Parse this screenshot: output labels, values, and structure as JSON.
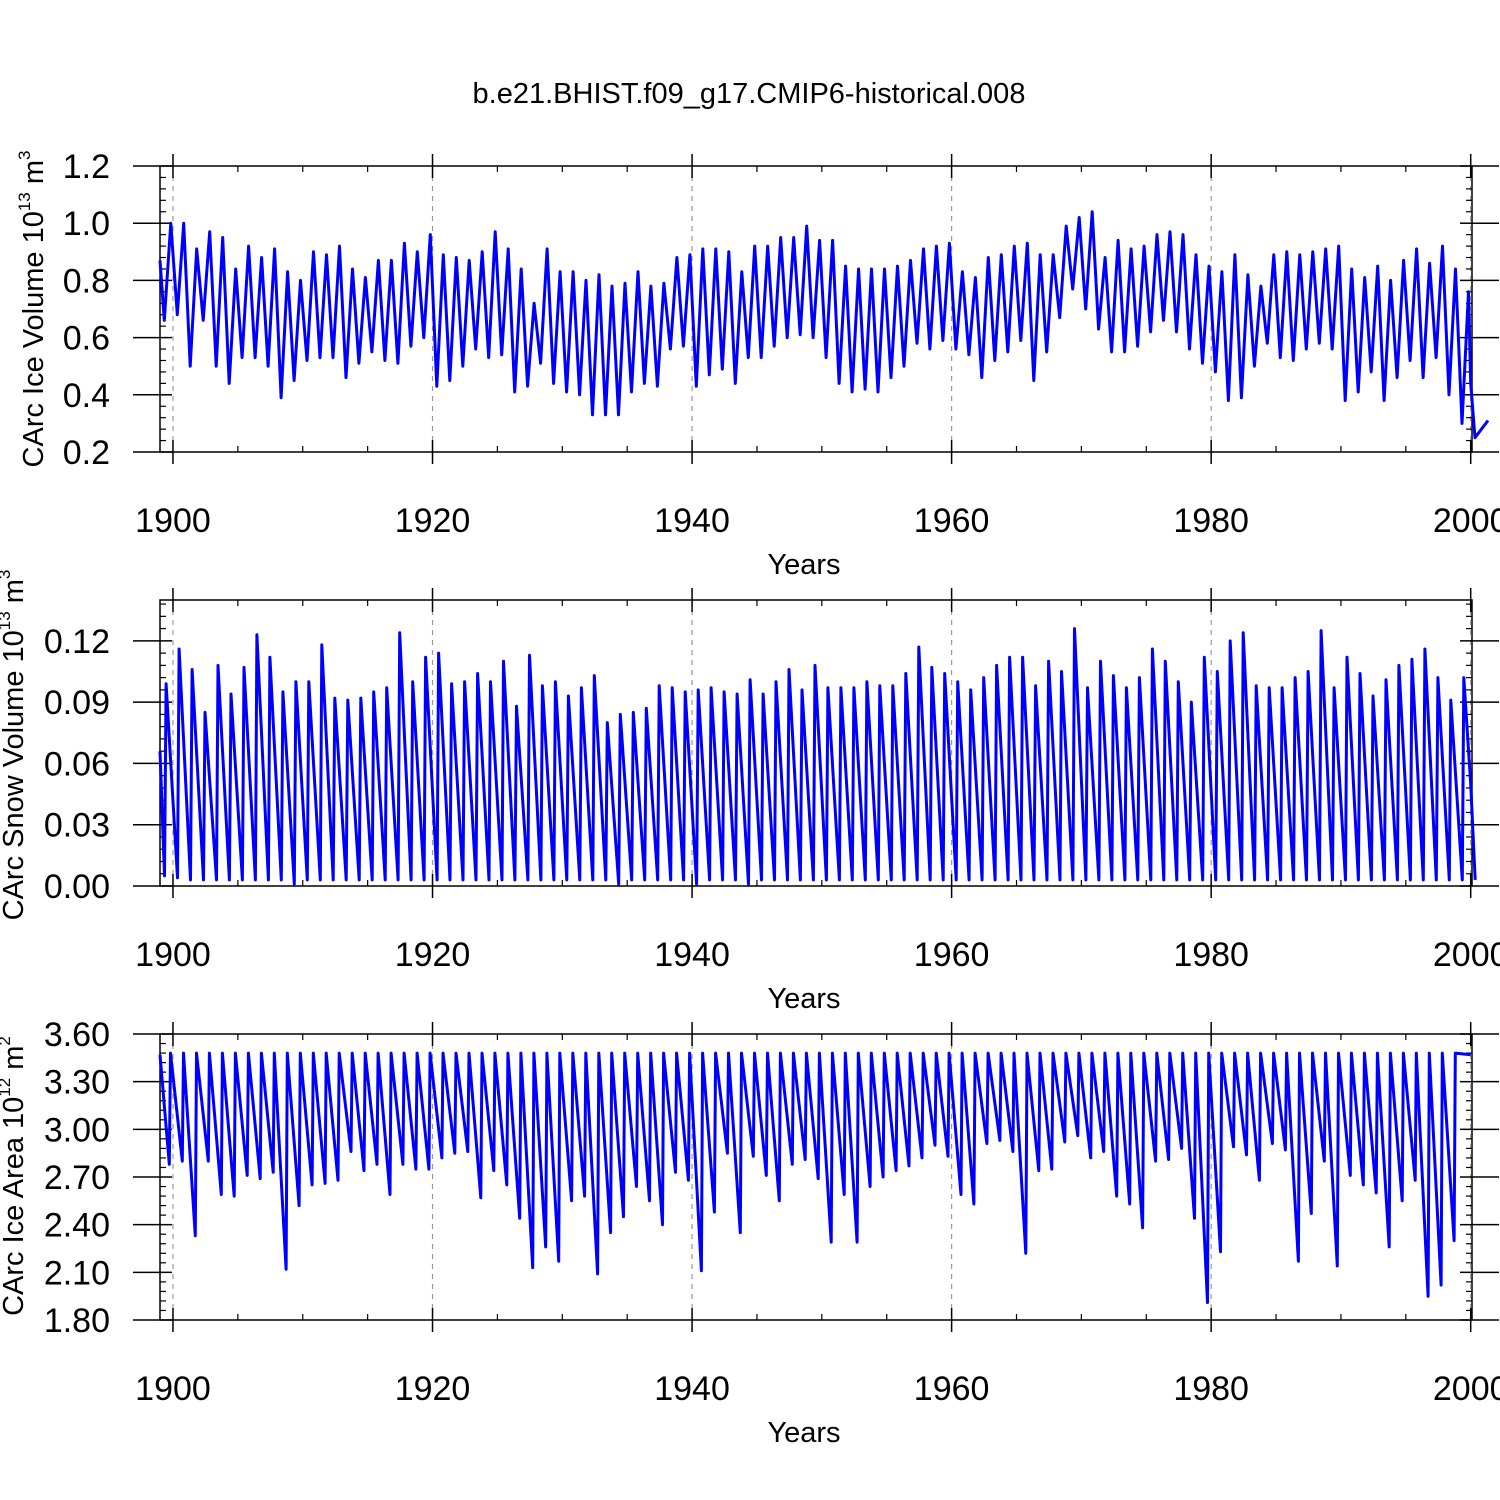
{
  "figure_title": "b.e21.BHIST.f09_g17.CMIP6-historical.008",
  "colors": {
    "series": "#0000ff",
    "frame": "#000000",
    "grid": "#999999"
  },
  "chart_data": [
    {
      "type": "line",
      "id": "ice-volume",
      "title": "b.e21.BHIST.f09_g17.CMIP6-historical.008",
      "xlabel": "Years",
      "ylabel": {
        "prefix": "CArc Ice Volume 10",
        "exp": "13",
        "unit": " m",
        "unit_exp": "3"
      },
      "xlim": [
        1899,
        2000.1
      ],
      "ylim": [
        0.2,
        1.2
      ],
      "xticks": [
        1900,
        1920,
        1940,
        1960,
        1980,
        2000
      ],
      "xtick_labels": [
        "1900",
        "1920",
        "1940",
        "1960",
        "1980",
        "2000"
      ],
      "yticks": [
        0.2,
        0.4,
        0.6,
        0.8,
        1.0,
        1.2
      ],
      "ytick_labels": [
        "0.2",
        "0.4",
        "0.6",
        "0.8",
        "1.0",
        "1.2"
      ],
      "grid_x": "dashed at 20-year marks",
      "seasonal_phase": 0.33,
      "seasonal_width": 0.5,
      "series": [
        {
          "name": "CArc Ice Volume",
          "start_year": 1899,
          "start_value": 0.87,
          "end_year": 2000,
          "end_value": 0.44,
          "annual_max": [
            1.0,
            1.0,
            0.91,
            0.97,
            0.95,
            0.84,
            0.92,
            0.88,
            0.91,
            0.83,
            0.8,
            0.9,
            0.89,
            0.92,
            0.84,
            0.81,
            0.87,
            0.87,
            0.93,
            0.9,
            0.96,
            0.89,
            0.88,
            0.87,
            0.9,
            0.97,
            0.91,
            0.84,
            0.72,
            0.91,
            0.83,
            0.83,
            0.8,
            0.82,
            0.78,
            0.79,
            0.83,
            0.78,
            0.79,
            0.88,
            0.89,
            0.91,
            0.91,
            0.9,
            0.83,
            0.92,
            0.92,
            0.95,
            0.95,
            0.99,
            0.94,
            0.94,
            0.85,
            0.84,
            0.84,
            0.84,
            0.85,
            0.87,
            0.91,
            0.92,
            0.93,
            0.83,
            0.81,
            0.88,
            0.89,
            0.92,
            0.93,
            0.89,
            0.89,
            0.99,
            1.02,
            1.04,
            0.88,
            0.94,
            0.91,
            0.92,
            0.96,
            0.97,
            0.96,
            0.89,
            0.85,
            0.83,
            0.89,
            0.82,
            0.78,
            0.89,
            0.9,
            0.89,
            0.9,
            0.91,
            0.92,
            0.84,
            0.81,
            0.85,
            0.8,
            0.87,
            0.91,
            0.86,
            0.92,
            0.84,
            0.76,
            0.7,
            0.71
          ],
          "annual_min": [
            0.66,
            0.68,
            0.5,
            0.66,
            0.5,
            0.44,
            0.53,
            0.53,
            0.5,
            0.39,
            0.45,
            0.52,
            0.53,
            0.53,
            0.46,
            0.51,
            0.55,
            0.52,
            0.51,
            0.57,
            0.6,
            0.43,
            0.45,
            0.5,
            0.56,
            0.53,
            0.54,
            0.41,
            0.43,
            0.51,
            0.44,
            0.41,
            0.4,
            0.33,
            0.33,
            0.33,
            0.41,
            0.44,
            0.43,
            0.56,
            0.57,
            0.43,
            0.47,
            0.49,
            0.44,
            0.53,
            0.53,
            0.57,
            0.6,
            0.61,
            0.6,
            0.53,
            0.44,
            0.41,
            0.42,
            0.41,
            0.46,
            0.5,
            0.58,
            0.56,
            0.59,
            0.56,
            0.54,
            0.46,
            0.52,
            0.55,
            0.59,
            0.45,
            0.55,
            0.67,
            0.77,
            0.7,
            0.63,
            0.55,
            0.55,
            0.57,
            0.62,
            0.66,
            0.62,
            0.56,
            0.51,
            0.48,
            0.38,
            0.39,
            0.5,
            0.58,
            0.53,
            0.52,
            0.56,
            0.58,
            0.56,
            0.38,
            0.41,
            0.48,
            0.38,
            0.46,
            0.52,
            0.46,
            0.53,
            0.4,
            0.3,
            0.25,
            0.31
          ]
        }
      ]
    },
    {
      "type": "line",
      "id": "snow-volume",
      "xlabel": "Years",
      "ylabel": {
        "prefix": "CArc Snow Volume 10",
        "exp": "13",
        "unit": " m",
        "unit_exp": "3"
      },
      "xlim": [
        1899,
        2000.1
      ],
      "ylim": [
        0.0,
        0.14
      ],
      "xticks": [
        1900,
        1920,
        1940,
        1960,
        1980,
        2000
      ],
      "xtick_labels": [
        "1900",
        "1920",
        "1940",
        "1960",
        "1980",
        "2000"
      ],
      "yticks": [
        0.0,
        0.03,
        0.06,
        0.09,
        0.12
      ],
      "ytick_labels": [
        "0.00",
        "0.03",
        "0.06",
        "0.09",
        "0.12"
      ],
      "grid_x": "dashed at 20-year marks",
      "seasonal_phase": 0.35,
      "seasonal_width": 0.12,
      "series": [
        {
          "name": "CArc Snow Volume",
          "start_year": 1899,
          "start_value": 0.066,
          "end_year": 2000,
          "end_value": 0.05,
          "annual_max": [
            0.099,
            0.116,
            0.106,
            0.085,
            0.108,
            0.094,
            0.107,
            0.123,
            0.112,
            0.095,
            0.1,
            0.1,
            0.118,
            0.092,
            0.091,
            0.092,
            0.095,
            0.097,
            0.124,
            0.1,
            0.112,
            0.114,
            0.099,
            0.1,
            0.104,
            0.1,
            0.11,
            0.088,
            0.113,
            0.098,
            0.1,
            0.093,
            0.097,
            0.103,
            0.08,
            0.084,
            0.085,
            0.087,
            0.098,
            0.097,
            0.095,
            0.096,
            0.097,
            0.095,
            0.094,
            0.101,
            0.094,
            0.1,
            0.106,
            0.096,
            0.108,
            0.097,
            0.097,
            0.097,
            0.1,
            0.098,
            0.098,
            0.104,
            0.117,
            0.107,
            0.104,
            0.1,
            0.096,
            0.102,
            0.108,
            0.112,
            0.112,
            0.098,
            0.11,
            0.105,
            0.126,
            0.097,
            0.11,
            0.103,
            0.097,
            0.102,
            0.116,
            0.11,
            0.1,
            0.09,
            0.112,
            0.105,
            0.12,
            0.124,
            0.098,
            0.097,
            0.097,
            0.102,
            0.105,
            0.125,
            0.097,
            0.112,
            0.104,
            0.093,
            0.101,
            0.108,
            0.111,
            0.116,
            0.102,
            0.091,
            0.102,
            0.099,
            0.105
          ],
          "annual_min": [
            0.005,
            0.004,
            0.003,
            0.003,
            0.003,
            0.003,
            0.003,
            0.003,
            0.003,
            0.003,
            0.001,
            0.003,
            0.003,
            0.003,
            0.003,
            0.003,
            0.003,
            0.003,
            0.003,
            0.003,
            0.003,
            0.003,
            0.003,
            0.003,
            0.003,
            0.003,
            0.003,
            0.003,
            0.003,
            0.003,
            0.003,
            0.003,
            0.003,
            0.003,
            0.003,
            0.001,
            0.003,
            0.003,
            0.003,
            0.003,
            0.003,
            0.001,
            0.003,
            0.003,
            0.003,
            0.001,
            0.003,
            0.003,
            0.003,
            0.003,
            0.003,
            0.003,
            0.003,
            0.003,
            0.003,
            0.003,
            0.003,
            0.003,
            0.003,
            0.003,
            0.003,
            0.003,
            0.003,
            0.003,
            0.003,
            0.003,
            0.003,
            0.003,
            0.003,
            0.003,
            0.003,
            0.003,
            0.003,
            0.003,
            0.003,
            0.003,
            0.003,
            0.003,
            0.003,
            0.003,
            0.003,
            0.003,
            0.003,
            0.003,
            0.003,
            0.003,
            0.003,
            0.003,
            0.003,
            0.003,
            0.003,
            0.003,
            0.003,
            0.003,
            0.003,
            0.003,
            0.003,
            0.003,
            0.003,
            0.003,
            0.003,
            0.003
          ]
        }
      ]
    },
    {
      "type": "line",
      "id": "ice-area",
      "xlabel": "Years",
      "ylabel": {
        "prefix": "CArc Ice Area 10",
        "exp": "12",
        "unit": " m",
        "unit_exp": "2"
      },
      "xlim": [
        1899,
        2000.1
      ],
      "ylim": [
        1.8,
        3.6
      ],
      "xticks": [
        1900,
        1920,
        1940,
        1960,
        1980,
        2000
      ],
      "xtick_labels": [
        "1900",
        "1920",
        "1940",
        "1960",
        "1980",
        "2000"
      ],
      "yticks": [
        1.8,
        2.1,
        2.4,
        2.7,
        3.0,
        3.3,
        3.6
      ],
      "ytick_labels": [
        "1.80",
        "2.10",
        "2.40",
        "2.70",
        "3.00",
        "3.30",
        "3.60"
      ],
      "grid_x": "dashed at 20-year marks",
      "seasonal_phase": 0.72,
      "seasonal_width": 0.09,
      "series": [
        {
          "name": "CArc Ice Area",
          "start_year": 1899,
          "start_value": 3.47,
          "end_year": 2000,
          "end_value": 3.47,
          "annual_max": [
            3.48,
            3.48,
            3.48,
            3.48,
            3.48,
            3.48,
            3.48,
            3.48,
            3.48,
            3.48,
            3.48,
            3.48,
            3.48,
            3.48,
            3.48,
            3.48,
            3.48,
            3.48,
            3.48,
            3.48,
            3.48,
            3.48,
            3.48,
            3.48,
            3.48,
            3.48,
            3.48,
            3.48,
            3.48,
            3.48,
            3.48,
            3.48,
            3.48,
            3.48,
            3.48,
            3.48,
            3.48,
            3.48,
            3.48,
            3.48,
            3.48,
            3.48,
            3.48,
            3.48,
            3.48,
            3.48,
            3.48,
            3.48,
            3.48,
            3.48,
            3.48,
            3.48,
            3.48,
            3.48,
            3.48,
            3.48,
            3.48,
            3.48,
            3.48,
            3.48,
            3.48,
            3.48,
            3.48,
            3.48,
            3.48,
            3.48,
            3.48,
            3.48,
            3.48,
            3.48,
            3.48,
            3.48,
            3.48,
            3.48,
            3.48,
            3.48,
            3.48,
            3.48,
            3.48,
            3.48,
            3.48,
            3.48,
            3.48,
            3.48,
            3.48,
            3.48,
            3.48,
            3.48,
            3.48,
            3.48,
            3.48,
            3.48,
            3.48,
            3.48,
            3.48,
            3.48,
            3.48,
            3.48,
            3.48,
            3.48,
            3.48
          ],
          "annual_min": [
            2.78,
            2.8,
            2.33,
            2.8,
            2.59,
            2.58,
            2.71,
            2.69,
            2.73,
            2.12,
            2.52,
            2.65,
            2.66,
            2.68,
            2.86,
            2.74,
            2.78,
            2.59,
            2.78,
            2.75,
            2.75,
            2.82,
            2.85,
            2.86,
            2.57,
            2.74,
            2.65,
            2.44,
            2.13,
            2.26,
            2.17,
            2.55,
            2.58,
            2.09,
            2.35,
            2.45,
            2.64,
            2.55,
            2.4,
            2.73,
            2.68,
            2.11,
            2.48,
            2.85,
            2.35,
            2.83,
            2.71,
            2.55,
            2.78,
            2.81,
            2.69,
            2.29,
            2.59,
            2.29,
            2.64,
            2.7,
            2.74,
            2.77,
            2.82,
            2.9,
            2.83,
            2.59,
            2.53,
            2.91,
            2.93,
            2.86,
            2.22,
            2.74,
            2.75,
            2.92,
            2.96,
            2.82,
            2.86,
            2.58,
            2.53,
            2.38,
            2.8,
            2.81,
            2.88,
            2.44,
            1.91,
            2.23,
            2.89,
            2.84,
            2.68,
            2.91,
            2.87,
            2.17,
            2.47,
            2.8,
            2.14,
            2.71,
            2.65,
            2.6,
            2.26,
            2.55,
            2.68,
            1.95,
            2.02,
            2.3
          ]
        }
      ]
    }
  ]
}
